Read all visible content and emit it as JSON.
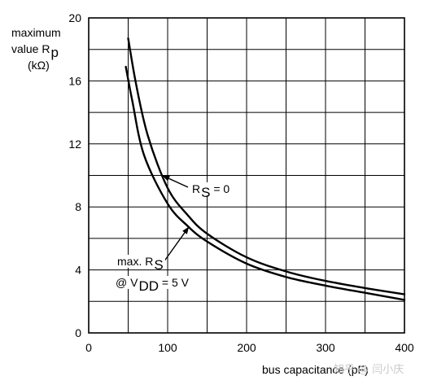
{
  "chart_data": {
    "type": "line",
    "ylabel": {
      "line1": "maximum",
      "line2_prefix": "value R",
      "line2_sub": "p",
      "line3": "(kΩ)"
    },
    "xlabel": "bus capacitance (pF)",
    "xlim": [
      0,
      400
    ],
    "ylim": [
      0,
      20
    ],
    "x_ticks": [
      0,
      100,
      200,
      300,
      400
    ],
    "y_ticks": [
      0,
      4,
      8,
      12,
      16,
      20
    ],
    "grid": {
      "x_step": 50,
      "y_step": 2,
      "shown": true
    },
    "series": [
      {
        "name": "R_S = 0",
        "x": [
          50,
          60,
          75,
          100,
          125,
          150,
          200,
          250,
          300,
          350,
          400
        ],
        "y": [
          18.7,
          15.8,
          12.5,
          9.2,
          7.5,
          6.3,
          4.8,
          3.9,
          3.3,
          2.85,
          2.45
        ]
      },
      {
        "name": "max. R_S @ V_DD = 5 V",
        "x": [
          47,
          55,
          70,
          100,
          125,
          150,
          200,
          250,
          300,
          350,
          400
        ],
        "y": [
          16.9,
          14.8,
          11.3,
          8.2,
          6.8,
          5.8,
          4.4,
          3.55,
          3.0,
          2.55,
          2.1
        ]
      }
    ],
    "annotations": {
      "rs0": {
        "prefix": "R",
        "sub": "S",
        "suffix": " = 0"
      },
      "maxrs": {
        "line1_prefix": "max. R",
        "line1_sub": "S",
        "line2_prefix": "@ V",
        "line2_sub": "DD",
        "line2_suffix": " = 5 V"
      }
    }
  },
  "watermark": "知乎 @ 闫小庆"
}
